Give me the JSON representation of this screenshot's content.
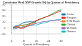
{
  "chart_data": {
    "type": "line",
    "title": "Cumulative Real GDP Growth (%) by Quarter of Presidency",
    "x_label": "Quarter of Presidency",
    "x": [
      1,
      2,
      3,
      4,
      5,
      6,
      7,
      8,
      9,
      10,
      11,
      12,
      13,
      14,
      15,
      16,
      17,
      18,
      19,
      20,
      21,
      22,
      23,
      24,
      25,
      26,
      27,
      28,
      29,
      30,
      31,
      32
    ],
    "series": [
      {
        "name": "Carter",
        "color": "#1f77b4",
        "values": [
          0.7,
          2.6,
          4.4,
          4.2,
          5.5,
          6.6,
          7.9,
          9.7,
          10.1,
          10.3,
          10.5,
          10.7,
          11.5,
          9.3,
          9.6,
          11.8,
          null,
          null,
          null,
          null,
          null,
          null,
          null,
          null,
          null,
          null,
          null,
          null,
          null,
          null,
          null,
          null
        ]
      },
      {
        "name": "Reagan",
        "color": "#d62728",
        "values": [
          2.0,
          1.6,
          2.7,
          1.6,
          0.1,
          -0.5,
          -0.1,
          -0.1,
          1.2,
          3.4,
          5.4,
          7.3,
          9.4,
          11.0,
          12.0,
          13.0,
          14.0,
          15.0,
          16.2,
          17.2,
          18.0,
          18.8,
          19.7,
          20.5,
          21.8,
          22.8,
          23.6,
          25.1,
          26.3,
          27.4,
          28.6,
          29.3
        ]
      },
      {
        "name": "H.W. Bush",
        "color": "#ff7f0e",
        "values": [
          1.0,
          2.0,
          2.2,
          2.9,
          3.9,
          4.3,
          4.3,
          3.4,
          3.1,
          3.9,
          4.6,
          5.7,
          6.8,
          7.4,
          8.3,
          9.3,
          null,
          null,
          null,
          null,
          null,
          null,
          null,
          null,
          null,
          null,
          null,
          null,
          null,
          null,
          null,
          null
        ]
      },
      {
        "name": "Clinton",
        "color": "#2ca02c",
        "values": [
          0.2,
          0.7,
          1.1,
          2.4,
          3.4,
          3.9,
          4.9,
          5.5,
          5.8,
          6.2,
          7.0,
          7.5,
          8.3,
          9.8,
          10.7,
          11.8,
          12.9,
          14.6,
          15.4,
          16.7,
          17.5,
          18.9,
          20.1,
          21.5,
          22.4,
          24.1,
          25.3,
          27.5,
          27.9,
          29.8,
          30.3,
          32.0
        ]
      },
      {
        "name": "W. Bush",
        "color": "#9467bd",
        "values": [
          -0.3,
          0.0,
          -0.4,
          0.5,
          0.8,
          1.3,
          1.7,
          1.8,
          2.3,
          3.3,
          3.9,
          4.1,
          5.7,
          6.2,
          7.1,
          7.6,
          8.8,
          9.2,
          10.0,
          10.8,
          11.1,
          11.2,
          11.4,
          12.2,
          12.8,
          13.3,
          13.2,
          13.6,
          14.0,
          13.7,
          12.5,
          10.8
        ]
      },
      {
        "name": "Obama",
        "color": "#17becf",
        "values": [
          -1.5,
          -1.6,
          -0.8,
          0.3,
          1.2,
          1.6,
          2.2,
          2.7,
          3.0,
          3.2,
          3.4,
          4.1,
          4.6,
          4.7,
          5.1,
          5.3,
          6.0,
          7.0,
          7.5,
          8.2,
          8.8,
          9.0,
          10.2,
          11.3,
          12.2,
          12.8,
          13.1,
          13.3,
          13.8,
          14.2,
          14.6,
          14.9
        ]
      }
    ],
    "xlim": [
      0,
      32
    ],
    "xticks": [
      0,
      8,
      16,
      24,
      32
    ],
    "ylim": [
      -10,
      40
    ],
    "yticks": [
      -10,
      0,
      10,
      20,
      30,
      40
    ],
    "grid": true,
    "legend": "right"
  }
}
